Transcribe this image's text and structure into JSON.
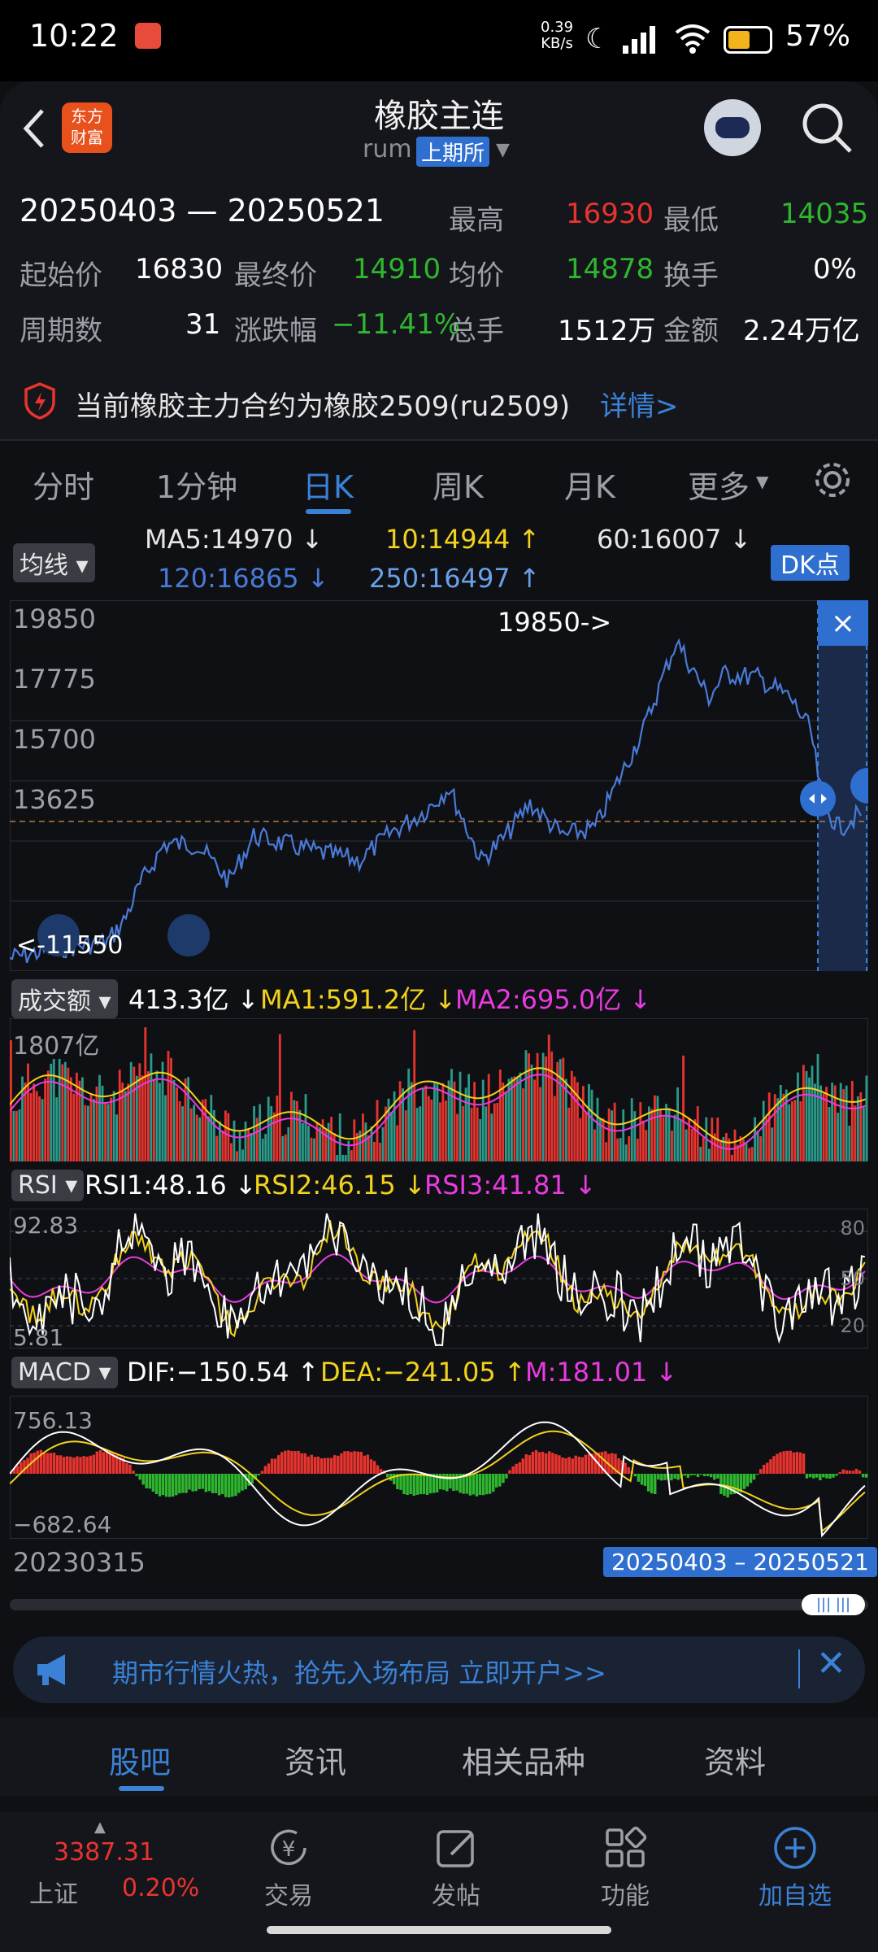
{
  "status_bar": {
    "time": "10:22",
    "net_speed_value": "0.39",
    "net_speed_unit": "KB/s",
    "battery": "57%"
  },
  "header": {
    "title": "橡胶主连",
    "subtitle": "rum",
    "exchange": "上期所",
    "logo_line1": "东方",
    "logo_line2": "财富"
  },
  "summary": {
    "date_range": "20250403 — 20250521",
    "high_label": "最高",
    "high": "16930",
    "low_label": "最低",
    "low": "14035",
    "open_label": "起始价",
    "open": "16830",
    "close_label": "最终价",
    "close": "14910",
    "avg_label": "均价",
    "avg": "14878",
    "turnover_label": "换手",
    "turnover": "0%",
    "periods_label": "周期数",
    "periods": "31",
    "change_label": "涨跌幅",
    "change": "−11.41%",
    "volume_label": "总手",
    "volume": "1512万",
    "amount_label": "金额",
    "amount": "2.24万亿"
  },
  "notice": {
    "text": "当前橡胶主力合约为橡胶2509(ru2509)",
    "link": "详情>"
  },
  "tabs": [
    "分时",
    "1分钟",
    "日K",
    "周K",
    "月K",
    "更多"
  ],
  "active_tab": 2,
  "ma_legend": {
    "selector": "均线",
    "ma5": "MA5:14970 ↓",
    "ma10": "10:14944 ↑",
    "ma60": "60:16007 ↓",
    "ma120": "120:16865 ↓",
    "ma250": "250:16497 ↑",
    "dk": "DK点"
  },
  "kline": {
    "y_labels": [
      "19850",
      "17775",
      "15700",
      "13625",
      "11550"
    ],
    "peak_label": "19850->",
    "low_label": "<-11550",
    "close_tag": "×"
  },
  "volume_panel": {
    "selector": "成交额",
    "value": "413.3亿 ↓",
    "ma1": "MA1:591.2亿 ↓",
    "ma2": "MA2:695.0亿 ↓",
    "y_max": "1807亿"
  },
  "rsi_panel": {
    "selector": "RSI",
    "rsi1": "RSI1:48.16 ↓",
    "rsi2": "RSI2:46.15 ↓",
    "rsi3": "RSI3:41.81 ↓",
    "y_max": "92.83",
    "y_min": "5.81",
    "r80": "80",
    "r50": "50",
    "r20": "20"
  },
  "macd_panel": {
    "selector": "MACD",
    "dif": "DIF:−150.54 ↑",
    "dea": "DEA:−241.05 ↑",
    "m": "M:181.01 ↓",
    "y_max": "756.13",
    "y_min": "−682.64"
  },
  "range_bar": {
    "start_date": "20230315",
    "selection": "20250403 – 20250521"
  },
  "promo": {
    "text": "期市行情火热，抢先入场布局 立即开户>>"
  },
  "bottom_tabs": [
    "股吧",
    "资讯",
    "相关品种",
    "资料"
  ],
  "nav": {
    "index_value": "3387.31",
    "index_name": "上证",
    "index_change": "0.20%",
    "items": [
      "交易",
      "发帖",
      "功能",
      "加自选"
    ]
  },
  "colors": {
    "up": "#e8342f",
    "down": "#2fb62f",
    "accent": "#3b82d6",
    "ma10": "#f2d21b",
    "ma2": "#e83be0"
  }
}
